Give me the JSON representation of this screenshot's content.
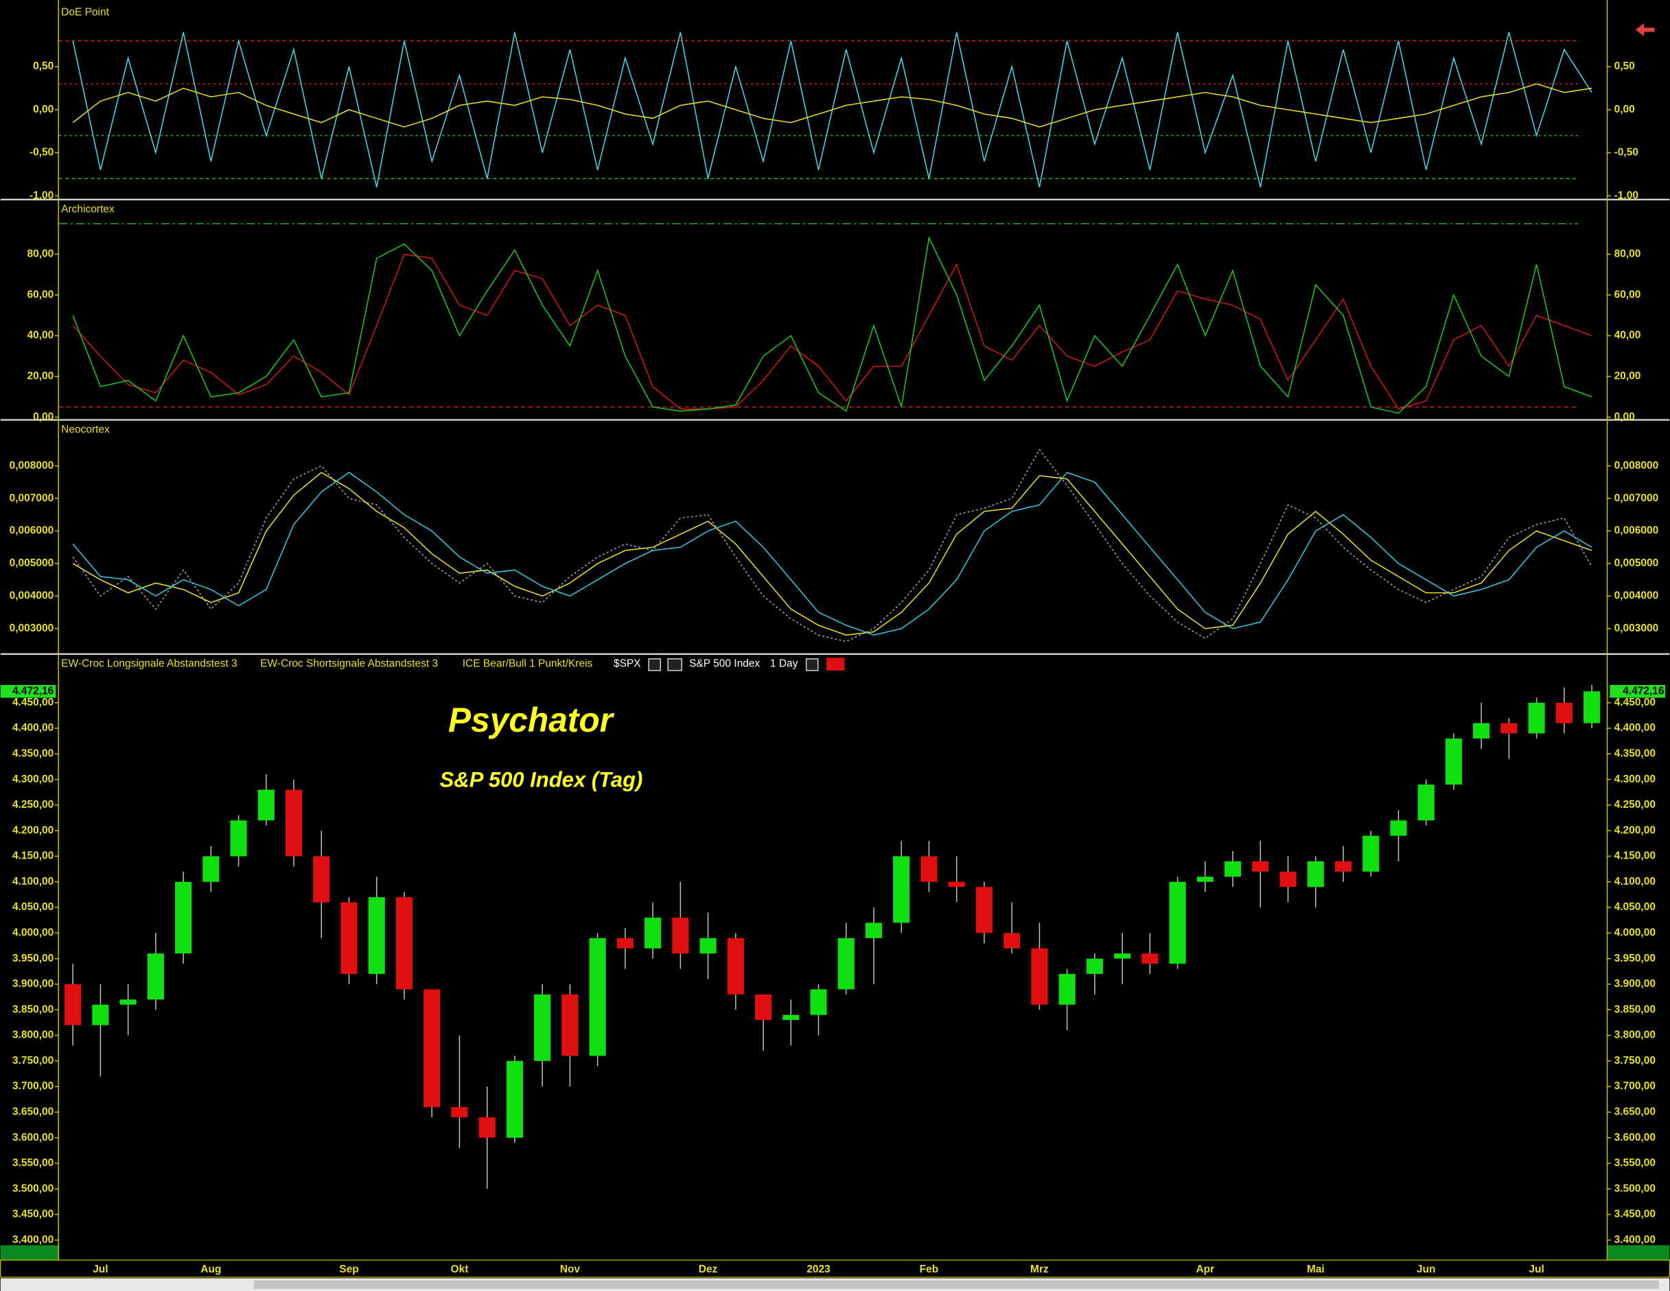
{
  "chart_data": [
    {
      "type": "line",
      "title": "DoE Point",
      "ylim": [
        -1.0,
        1.2
      ],
      "yticks": [
        {
          "value": 0.5,
          "label": "0,50"
        },
        {
          "value": 0,
          "label": "0,00"
        },
        {
          "value": -0.5,
          "label": "-0,50"
        },
        {
          "value": -1.0,
          "label": "-1,00"
        }
      ],
      "reference_lines": [
        {
          "value": 0.8,
          "color": "#e02020",
          "dash": "3,3"
        },
        {
          "value": 0.3,
          "color": "#e02020",
          "dash": "2,3"
        },
        {
          "value": -0.3,
          "color": "#20c020",
          "dash": "2,3"
        },
        {
          "value": -0.8,
          "color": "#20c020",
          "dash": "3,3"
        }
      ],
      "series": [
        {
          "color": "#40d8e8",
          "values": [
            0.8,
            -0.7,
            0.6,
            -0.5,
            0.9,
            -0.6,
            0.8,
            -0.3,
            0.7,
            -0.8,
            0.5,
            -0.9,
            0.8,
            -0.6,
            0.4,
            -0.8,
            0.9,
            -0.5,
            0.7,
            -0.7,
            0.6,
            -0.4,
            0.9,
            -0.8,
            0.5,
            -0.6,
            0.8,
            -0.7,
            0.7,
            -0.5,
            0.6,
            -0.8,
            0.9,
            -0.6,
            0.5,
            -0.9,
            0.8,
            -0.4,
            0.6,
            -0.7,
            0.9,
            -0.5,
            0.4,
            -0.9,
            0.8,
            -0.6,
            0.7,
            -0.5,
            0.8,
            -0.7,
            0.6,
            -0.4,
            0.9,
            -0.3,
            0.7,
            0.2
          ]
        },
        {
          "color": "#e8e020",
          "values": [
            -0.15,
            0.1,
            0.2,
            0.1,
            0.25,
            0.15,
            0.2,
            0.05,
            -0.05,
            -0.15,
            0.0,
            -0.1,
            -0.2,
            -0.1,
            0.05,
            0.1,
            0.05,
            0.15,
            0.12,
            0.05,
            -0.05,
            -0.1,
            0.05,
            0.1,
            0.0,
            -0.1,
            -0.15,
            -0.05,
            0.05,
            0.1,
            0.15,
            0.12,
            0.05,
            -0.05,
            -0.1,
            -0.2,
            -0.1,
            0.0,
            0.05,
            0.1,
            0.15,
            0.2,
            0.15,
            0.05,
            0.0,
            -0.05,
            -0.1,
            -0.15,
            -0.1,
            -0.05,
            0.05,
            0.15,
            0.2,
            0.3,
            0.2,
            0.25
          ]
        }
      ]
    },
    {
      "type": "line",
      "title": "Archicortex",
      "ylim": [
        0,
        105
      ],
      "yticks": [
        {
          "value": 80,
          "label": "80,00"
        },
        {
          "value": 60,
          "label": "60,00"
        },
        {
          "value": 40,
          "label": "40,00"
        },
        {
          "value": 20,
          "label": "20,00"
        },
        {
          "value": 0,
          "label": "0,00"
        }
      ],
      "reference_lines": [
        {
          "value": 95,
          "color": "#20b020",
          "dash": "8,3,2,3"
        },
        {
          "value": 5,
          "color": "#d02020",
          "dash": "4,3"
        }
      ],
      "series": [
        {
          "color": "#d01818",
          "values": [
            45,
            30,
            16,
            12,
            28,
            22,
            11,
            16,
            30,
            22,
            11,
            45,
            80,
            78,
            55,
            50,
            72,
            68,
            45,
            55,
            50,
            15,
            4,
            4,
            5,
            18,
            35,
            25,
            8,
            25,
            25,
            50,
            75,
            35,
            28,
            45,
            30,
            25,
            32,
            38,
            62,
            58,
            55,
            48,
            18,
            38,
            58,
            25,
            4,
            8,
            38,
            45,
            25,
            50,
            45,
            40
          ]
        },
        {
          "color": "#18c818",
          "values": [
            50,
            15,
            18,
            8,
            40,
            10,
            12,
            20,
            38,
            10,
            12,
            78,
            85,
            72,
            40,
            62,
            82,
            55,
            35,
            72,
            30,
            5,
            3,
            4,
            6,
            30,
            40,
            12,
            3,
            45,
            5,
            88,
            60,
            18,
            35,
            55,
            8,
            40,
            25,
            50,
            75,
            40,
            72,
            25,
            10,
            65,
            50,
            5,
            2,
            15,
            60,
            30,
            20,
            75,
            15,
            10
          ]
        }
      ]
    },
    {
      "type": "line",
      "title": "Neocortex",
      "ylim": [
        0.0023,
        0.0093
      ],
      "yticks": [
        {
          "value": 0.008,
          "label": "0,008000"
        },
        {
          "value": 0.007,
          "label": "0,007000"
        },
        {
          "value": 0.006,
          "label": "0,006000"
        },
        {
          "value": 0.005,
          "label": "0,005000"
        },
        {
          "value": 0.004,
          "label": "0,004000"
        },
        {
          "value": 0.003,
          "label": "0,003000"
        }
      ],
      "series": [
        {
          "color": "#a0a0a0",
          "dash": "2,2",
          "values": [
            0.0052,
            0.004,
            0.0046,
            0.0036,
            0.0048,
            0.0036,
            0.0044,
            0.0064,
            0.0076,
            0.008,
            0.007,
            0.0068,
            0.0058,
            0.005,
            0.0044,
            0.005,
            0.004,
            0.0038,
            0.0046,
            0.0052,
            0.0056,
            0.0054,
            0.0064,
            0.0065,
            0.0052,
            0.004,
            0.0033,
            0.0028,
            0.0026,
            0.003,
            0.0038,
            0.0048,
            0.0065,
            0.0067,
            0.007,
            0.0085,
            0.0074,
            0.0062,
            0.005,
            0.004,
            0.0032,
            0.0027,
            0.0033,
            0.005,
            0.0068,
            0.0064,
            0.0055,
            0.0048,
            0.0042,
            0.0038,
            0.0042,
            0.0046,
            0.0058,
            0.0062,
            0.0064,
            0.0049
          ]
        },
        {
          "color": "#e8e020",
          "values": [
            0.005,
            0.0045,
            0.0041,
            0.0044,
            0.0042,
            0.0038,
            0.0041,
            0.006,
            0.0071,
            0.0078,
            0.0073,
            0.0066,
            0.0061,
            0.0053,
            0.0047,
            0.0048,
            0.0043,
            0.004,
            0.0044,
            0.005,
            0.0054,
            0.0055,
            0.0059,
            0.0063,
            0.0056,
            0.0046,
            0.0036,
            0.0031,
            0.0028,
            0.0029,
            0.0035,
            0.0044,
            0.0059,
            0.0066,
            0.0067,
            0.0077,
            0.0076,
            0.0066,
            0.0056,
            0.0046,
            0.0036,
            0.003,
            0.0031,
            0.0044,
            0.0059,
            0.0066,
            0.0059,
            0.0051,
            0.0046,
            0.0041,
            0.0041,
            0.0044,
            0.0054,
            0.006,
            0.0057,
            0.0054
          ]
        },
        {
          "color": "#30c8e0",
          "values": [
            0.0056,
            0.0046,
            0.0045,
            0.004,
            0.0045,
            0.0042,
            0.0037,
            0.0042,
            0.0062,
            0.0072,
            0.0078,
            0.0072,
            0.0065,
            0.006,
            0.0052,
            0.0047,
            0.0048,
            0.0043,
            0.004,
            0.0045,
            0.005,
            0.0054,
            0.0055,
            0.006,
            0.0063,
            0.0055,
            0.0045,
            0.0035,
            0.0031,
            0.0028,
            0.003,
            0.0036,
            0.0045,
            0.006,
            0.0066,
            0.0068,
            0.0078,
            0.0075,
            0.0065,
            0.0055,
            0.0045,
            0.0035,
            0.003,
            0.0032,
            0.0045,
            0.006,
            0.0065,
            0.0058,
            0.005,
            0.0045,
            0.004,
            0.0042,
            0.0045,
            0.0055,
            0.006,
            0.0055
          ]
        }
      ]
    },
    {
      "type": "candlestick",
      "title": "Psychator",
      "subtitle": "S&P 500 Index (Tag)",
      "indicators": [
        "EW-Croc Longsignale Abstandstest 3",
        "EW-Croc Shortsignale Abstandstest 3",
        "ICE Bear/Bull 1 Punkt/Kreis"
      ],
      "symbol": "$SPX",
      "instrument": "S&P 500 Index",
      "interval": "1 Day",
      "up_color": "#10e010",
      "down_color": "#e01010",
      "ylim": [
        3365,
        4490
      ],
      "yticks": [
        {
          "value": 3400,
          "label": "3.400,00"
        },
        {
          "value": 3450,
          "label": "3.450,00"
        },
        {
          "value": 3500,
          "label": "3.500,00"
        },
        {
          "value": 3550,
          "label": "3.550,00"
        },
        {
          "value": 3600,
          "label": "3.600,00"
        },
        {
          "value": 3650,
          "label": "3.650,00"
        },
        {
          "value": 3700,
          "label": "3.700,00"
        },
        {
          "value": 3750,
          "label": "3.750,00"
        },
        {
          "value": 3800,
          "label": "3.800,00"
        },
        {
          "value": 3850,
          "label": "3.850,00"
        },
        {
          "value": 3900,
          "label": "3.900,00"
        },
        {
          "value": 3950,
          "label": "3.950,00"
        },
        {
          "value": 4000,
          "label": "4.000,00"
        },
        {
          "value": 4050,
          "label": "4.050,00"
        },
        {
          "value": 4100,
          "label": "4.100,00"
        },
        {
          "value": 4150,
          "label": "4.150,00"
        },
        {
          "value": 4200,
          "label": "4.200,00"
        },
        {
          "value": 4250,
          "label": "4.250,00"
        },
        {
          "value": 4300,
          "label": "4.300,00"
        },
        {
          "value": 4350,
          "label": "4.350,00"
        },
        {
          "value": 4400,
          "label": "4.400,00"
        },
        {
          "value": 4450,
          "label": "4.450,00"
        }
      ],
      "last_price": {
        "value": 4472.16,
        "label": "4.472,16"
      },
      "categories": [
        null,
        "Jul",
        null,
        null,
        null,
        "Aug",
        null,
        null,
        null,
        null,
        "Sep",
        null,
        null,
        null,
        "Okt",
        null,
        null,
        null,
        "Nov",
        null,
        null,
        null,
        null,
        "Dez",
        null,
        null,
        null,
        "2023",
        null,
        null,
        null,
        "Feb",
        null,
        null,
        null,
        "Mrz",
        null,
        null,
        null,
        null,
        null,
        "Apr",
        null,
        null,
        null,
        "Mai",
        null,
        null,
        null,
        "Jun",
        null,
        null,
        null,
        "Jul",
        null,
        null
      ],
      "open": [
        3900,
        3820,
        3860,
        3870,
        3960,
        4100,
        4150,
        4220,
        4280,
        4150,
        4060,
        3920,
        4070,
        3890,
        3660,
        3640,
        3600,
        3750,
        3880,
        3760,
        3990,
        3970,
        4030,
        3960,
        3990,
        3880,
        3830,
        3840,
        3890,
        3990,
        4020,
        4150,
        4100,
        4090,
        4000,
        3970,
        3860,
        3920,
        3950,
        3960,
        3940,
        4100,
        4110,
        4140,
        4120,
        4090,
        4140,
        4120,
        4190,
        4220,
        4290,
        4380,
        4410,
        4390,
        4450,
        4410
      ],
      "high": [
        3940,
        3900,
        3900,
        4000,
        4120,
        4170,
        4230,
        4310,
        4300,
        4200,
        4070,
        4110,
        4080,
        3890,
        3800,
        3700,
        3760,
        3900,
        3900,
        4000,
        4010,
        4060,
        4100,
        4040,
        4000,
        3880,
        3870,
        3900,
        4020,
        4050,
        4180,
        4180,
        4150,
        4100,
        4060,
        4020,
        3930,
        3960,
        4000,
        4000,
        4110,
        4140,
        4160,
        4180,
        4150,
        4150,
        4170,
        4200,
        4240,
        4300,
        4390,
        4450,
        4420,
        4460,
        4480,
        4485
      ],
      "low": [
        3780,
        3720,
        3800,
        3850,
        3940,
        4080,
        4130,
        4210,
        4130,
        3990,
        3900,
        3900,
        3870,
        3640,
        3580,
        3500,
        3590,
        3700,
        3700,
        3740,
        3930,
        3950,
        3930,
        3910,
        3850,
        3770,
        3780,
        3800,
        3880,
        3900,
        4000,
        4080,
        4060,
        3980,
        3960,
        3850,
        3810,
        3880,
        3900,
        3920,
        3930,
        4080,
        4090,
        4050,
        4060,
        4050,
        4100,
        4110,
        4140,
        4210,
        4280,
        4360,
        4340,
        4380,
        4390,
        4400
      ],
      "close": [
        3820,
        3860,
        3870,
        3960,
        4100,
        4150,
        4220,
        4280,
        4150,
        4060,
        3920,
        4070,
        3890,
        3660,
        3640,
        3600,
        3750,
        3880,
        3760,
        3990,
        3970,
        4030,
        3960,
        3990,
        3880,
        3830,
        3840,
        3890,
        3990,
        4020,
        4150,
        4100,
        4090,
        4000,
        3970,
        3860,
        3920,
        3950,
        3960,
        3940,
        4100,
        4110,
        4140,
        4120,
        4090,
        4140,
        4120,
        4190,
        4220,
        4290,
        4380,
        4410,
        4390,
        4450,
        4410,
        4472.16
      ]
    }
  ]
}
